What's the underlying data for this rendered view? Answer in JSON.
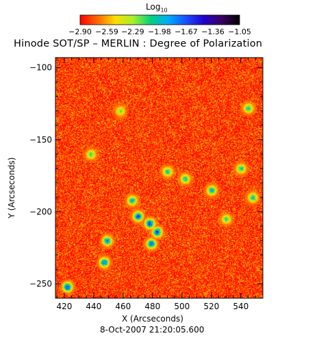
{
  "chart_data": {
    "type": "heatmap",
    "title": "Hinode SOT/SP – MERLIN : Degree of Polarization",
    "xlabel": "X (Arcseconds)",
    "ylabel": "Y (Arcseconds)",
    "xlim": [
      414,
      555
    ],
    "ylim": [
      -260,
      -93
    ],
    "x_ticks": [
      420,
      440,
      460,
      480,
      500,
      520,
      540
    ],
    "y_ticks": [
      -100,
      -150,
      -200,
      -250
    ],
    "x_tick_labels": [
      "420",
      "440",
      "460",
      "480",
      "500",
      "520",
      "540"
    ],
    "y_tick_labels": [
      "−100",
      "−150",
      "−200",
      "−250"
    ],
    "timestamp": "8-Oct-2007 21:20:05.600",
    "colorbar": {
      "label": "Log",
      "label_subscript": "10",
      "range": [
        -2.9,
        -1.05
      ],
      "ticks": [
        -2.9,
        -2.59,
        -2.29,
        -1.98,
        -1.67,
        -1.36,
        -1.05
      ],
      "tick_labels": [
        "−2.90",
        "−2.59",
        "−2.29",
        "−1.98",
        "−1.67",
        "−1.36",
        "−1.05"
      ],
      "colormap": [
        "#ff0000",
        "#ff6a00",
        "#ffdd00",
        "#a4ef2c",
        "#00d080",
        "#00aaff",
        "#1a4dff",
        "#2200c8",
        "#3a0060",
        "#000000"
      ]
    },
    "background_level": -2.8,
    "high_polarization_features": [
      {
        "x": 422,
        "y": -252,
        "level": -1.6
      },
      {
        "x": 447,
        "y": -235,
        "level": -1.7
      },
      {
        "x": 449,
        "y": -220,
        "level": -1.8
      },
      {
        "x": 466,
        "y": -192,
        "level": -1.9
      },
      {
        "x": 470,
        "y": -203,
        "level": -1.6
      },
      {
        "x": 478,
        "y": -208,
        "level": -1.55
      },
      {
        "x": 483,
        "y": -214,
        "level": -1.6
      },
      {
        "x": 479,
        "y": -222,
        "level": -1.7
      },
      {
        "x": 490,
        "y": -172,
        "level": -2.0
      },
      {
        "x": 502,
        "y": -177,
        "level": -2.0
      },
      {
        "x": 520,
        "y": -185,
        "level": -1.9
      },
      {
        "x": 540,
        "y": -170,
        "level": -2.0
      },
      {
        "x": 545,
        "y": -128,
        "level": -2.0
      },
      {
        "x": 548,
        "y": -190,
        "level": -1.95
      },
      {
        "x": 438,
        "y": -160,
        "level": -2.1
      },
      {
        "x": 530,
        "y": -205,
        "level": -2.1
      },
      {
        "x": 458,
        "y": -130,
        "level": -2.2
      }
    ]
  }
}
